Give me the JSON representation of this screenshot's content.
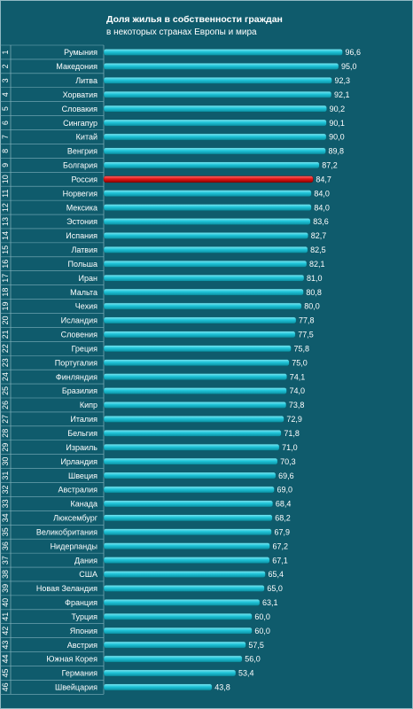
{
  "chart_data": {
    "type": "bar",
    "orientation": "horizontal",
    "title": "Доля жилья в собственности  граждан",
    "subtitle": "в некоторых странах Европы и мира",
    "ranks": [
      "1",
      "2",
      "3",
      "4",
      "5",
      "6",
      "7",
      "8",
      "9",
      "10",
      "11",
      "12",
      "13",
      "14",
      "15",
      "16",
      "17",
      "18",
      "19",
      "20",
      "21",
      "22",
      "23",
      "24",
      "25",
      "26",
      "27",
      "28",
      "29",
      "30",
      "31",
      "32",
      "33",
      "34",
      "35",
      "36",
      "37",
      "38",
      "39",
      "40",
      "41",
      "42",
      "43",
      "44",
      "45",
      "46"
    ],
    "categories": [
      "Румыния",
      "Македония",
      "Литва",
      "Хорватия",
      "Словакия",
      "Сингапур",
      "Китай",
      "Венгрия",
      "Болгария",
      "Россия",
      "Норвегия",
      "Мексика",
      "Эстония",
      "Испания",
      "Латвия",
      "Польша",
      "Иран",
      "Мальта",
      "Чехия",
      "Исландия",
      "Словения",
      "Греция",
      "Португалия",
      "Финляндия",
      "Бразилия",
      "Кипр",
      "Италия",
      "Бельгия",
      "Израиль",
      "Ирландия",
      "Швеция",
      "Австралия",
      "Канада",
      "Люксембург",
      "Великобритания",
      "Нидерланды",
      "Дания",
      "США",
      "Новая Зеландия",
      "Франция",
      "Турция",
      "Япония",
      "Австрия",
      "Южная Корея",
      "Германия",
      "Швейцария"
    ],
    "values": [
      96.6,
      95.0,
      92.3,
      92.1,
      90.2,
      90.1,
      90.0,
      89.8,
      87.2,
      84.7,
      84.0,
      84.0,
      83.6,
      82.7,
      82.5,
      82.1,
      81.0,
      80.8,
      80.0,
      77.8,
      77.5,
      75.8,
      75.0,
      74.1,
      74.0,
      73.8,
      72.9,
      71.8,
      71.0,
      70.3,
      69.6,
      69.0,
      68.4,
      68.2,
      67.9,
      67.2,
      67.1,
      65.4,
      65.0,
      63.1,
      60.0,
      60.0,
      57.5,
      56.0,
      53.4,
      43.8
    ],
    "value_labels": [
      "96,6",
      "95,0",
      "92,3",
      "92,1",
      "90,2",
      "90,1",
      "90,0",
      "89,8",
      "87,2",
      "84,7",
      "84,0",
      "84,0",
      "83,6",
      "82,7",
      "82,5",
      "82,1",
      "81,0",
      "80,8",
      "80,0",
      "77,8",
      "77,5",
      "75,8",
      "75,0",
      "74,1",
      "74,0",
      "73,8",
      "72,9",
      "71,8",
      "71,0",
      "70,3",
      "69,6",
      "69,0",
      "68,4",
      "68,2",
      "67,9",
      "67,2",
      "67,1",
      "65,4",
      "65,0",
      "63,1",
      "60,0",
      "60,0",
      "57,5",
      "56,0",
      "53,4",
      "43,8"
    ],
    "highlight": "Россия",
    "colors": {
      "bar": "#1fc4d8",
      "highlight": "#e01818",
      "background": "#0f5b6c"
    }
  }
}
